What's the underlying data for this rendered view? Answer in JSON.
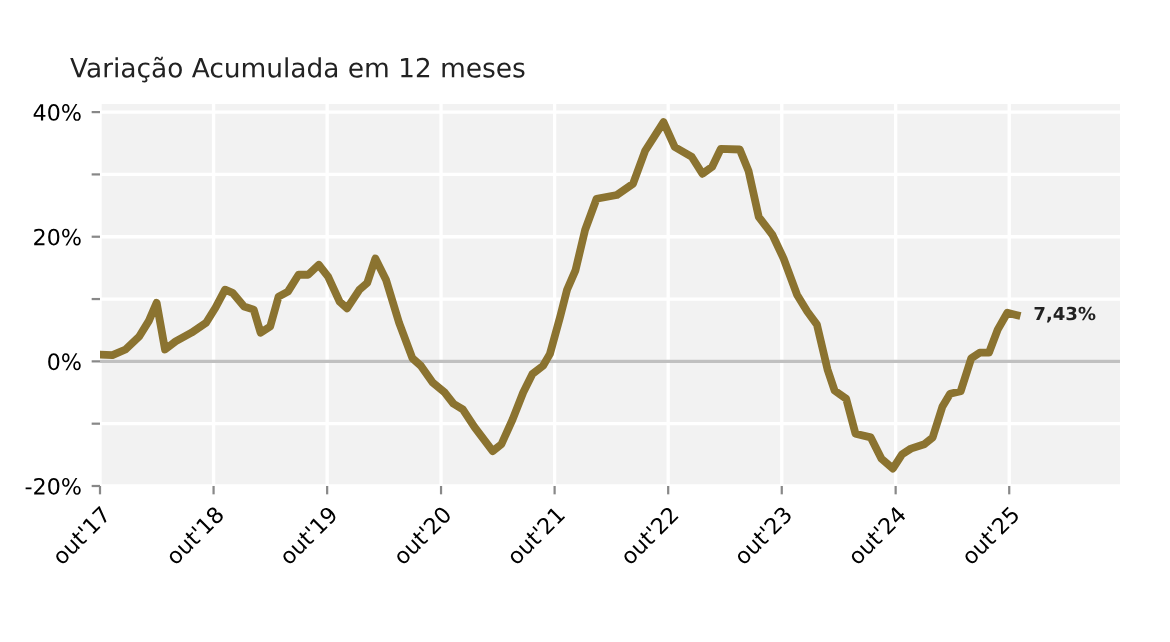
{
  "chart_data": {
    "type": "line",
    "title": "Variação Acumulada em 12 meses",
    "x": [
      "2017-10-01",
      "2017-11-10",
      "2017-12-22",
      "2018-02-04",
      "2018-03-07",
      "2018-04-01",
      "2018-04-28",
      "2018-06-01",
      "2018-07-22",
      "2018-09-07",
      "2018-10-07",
      "2018-11-07",
      "2018-12-01",
      "2019-01-07",
      "2019-02-07",
      "2019-03-01",
      "2019-04-01",
      "2019-04-28",
      "2019-05-28",
      "2019-07-01",
      "2019-08-01",
      "2019-09-04",
      "2019-10-04",
      "2019-11-10",
      "2019-12-04",
      "2020-01-13",
      "2020-02-07",
      "2020-03-04",
      "2020-04-07",
      "2020-05-19",
      "2020-07-01",
      "2020-07-28",
      "2020-09-04",
      "2020-10-13",
      "2020-11-10",
      "2020-12-10",
      "2021-01-16",
      "2021-03-16",
      "2021-04-13",
      "2021-05-19",
      "2021-06-22",
      "2021-07-22",
      "2021-08-25",
      "2021-09-16",
      "2021-10-19",
      "2021-11-10",
      "2021-12-07",
      "2022-01-07",
      "2022-02-13",
      "2022-04-19",
      "2022-06-10",
      "2022-07-19",
      "2022-09-16",
      "2022-10-22",
      "2022-12-16",
      "2023-01-19",
      "2023-02-19",
      "2023-03-19",
      "2023-05-19",
      "2023-06-16",
      "2023-07-19",
      "2023-09-01",
      "2023-10-07",
      "2023-11-19",
      "2023-12-22",
      "2024-01-22",
      "2024-02-25",
      "2024-03-19",
      "2024-04-25",
      "2024-05-25",
      "2024-07-13",
      "2024-08-16",
      "2024-09-22",
      "2024-10-22",
      "2024-11-19",
      "2025-01-01",
      "2025-01-28",
      "2025-02-28",
      "2025-03-25",
      "2025-04-28",
      "2025-06-01",
      "2025-06-28",
      "2025-07-28",
      "2025-08-25",
      "2025-09-25",
      "2025-10-25"
    ],
    "series": [
      {
        "color": "#8b7330",
        "values": [
          1.1,
          1.0,
          1.9,
          4.0,
          6.5,
          9.4,
          1.9,
          3.2,
          4.6,
          6.2,
          8.6,
          11.5,
          11.0,
          8.8,
          8.3,
          4.6,
          5.6,
          10.4,
          11.2,
          13.9,
          13.9,
          15.5,
          13.6,
          9.6,
          8.5,
          11.5,
          12.6,
          16.5,
          13.1,
          6.2,
          0.5,
          -0.7,
          -3.4,
          -5.0,
          -6.8,
          -7.7,
          -10.5,
          -14.4,
          -13.3,
          -9.3,
          -5.0,
          -2.0,
          -0.7,
          1.2,
          7.2,
          11.5,
          14.6,
          21.1,
          26.1,
          26.7,
          28.5,
          33.8,
          38.4,
          34.4,
          32.8,
          30.1,
          31.2,
          34.1,
          34.0,
          30.6,
          23.2,
          20.3,
          16.5,
          10.7,
          8.0,
          5.9,
          -1.3,
          -4.7,
          -6.0,
          -11.6,
          -12.2,
          -15.6,
          -17.2,
          -14.9,
          -14.0,
          -13.3,
          -12.2,
          -7.3,
          -5.2,
          -4.8,
          0.5,
          1.4,
          1.4,
          5.1,
          7.8,
          7.43
        ],
        "value_labels": [
          null,
          null,
          null,
          null,
          null,
          null,
          null,
          null,
          null,
          null,
          null,
          null,
          null,
          null,
          null,
          null,
          null,
          null,
          null,
          null,
          null,
          null,
          null,
          null,
          null,
          null,
          null,
          null,
          null,
          null,
          null,
          null,
          null,
          null,
          null,
          null,
          null,
          null,
          null,
          null,
          null,
          null,
          null,
          null,
          null,
          null,
          null,
          null,
          null,
          null,
          null,
          null,
          null,
          null,
          null,
          null,
          null,
          null,
          null,
          null,
          null,
          null,
          null,
          null,
          null,
          null,
          null,
          null,
          null,
          null,
          null,
          null,
          null,
          null,
          null,
          null,
          null,
          null,
          null,
          null,
          null,
          null,
          null,
          null,
          null,
          "7,43%"
        ]
      }
    ],
    "xlim": [
      "2017-10-01",
      "2026-09-22"
    ],
    "xticks": [
      {
        "value": "2017-10-01",
        "label": "out'17"
      },
      {
        "value": "2018-10-01",
        "label": "out'18"
      },
      {
        "value": "2019-10-01",
        "label": "out'19"
      },
      {
        "value": "2020-10-01",
        "label": "out'20"
      },
      {
        "value": "2021-10-01",
        "label": "out'21"
      },
      {
        "value": "2022-10-01",
        "label": "out'22"
      },
      {
        "value": "2023-10-01",
        "label": "out'23"
      },
      {
        "value": "2024-10-01",
        "label": "out'24"
      },
      {
        "value": "2025-10-01",
        "label": "out'25"
      }
    ],
    "ylim": [
      -20,
      41.3
    ],
    "yticks": [
      {
        "value": -20,
        "label": "-20%"
      },
      {
        "value": -10,
        "label": null
      },
      {
        "value": 0,
        "label": "0%"
      },
      {
        "value": 10,
        "label": null
      },
      {
        "value": 20,
        "label": "20%"
      },
      {
        "value": 30,
        "label": null
      },
      {
        "value": 40,
        "label": "40%"
      }
    ],
    "ref_lines": [
      {
        "axis": "y",
        "value": 0,
        "label": null,
        "color": "#c0c0c0"
      }
    ],
    "grid": true,
    "marker": "none",
    "line_style": "solid",
    "legend": false
  }
}
